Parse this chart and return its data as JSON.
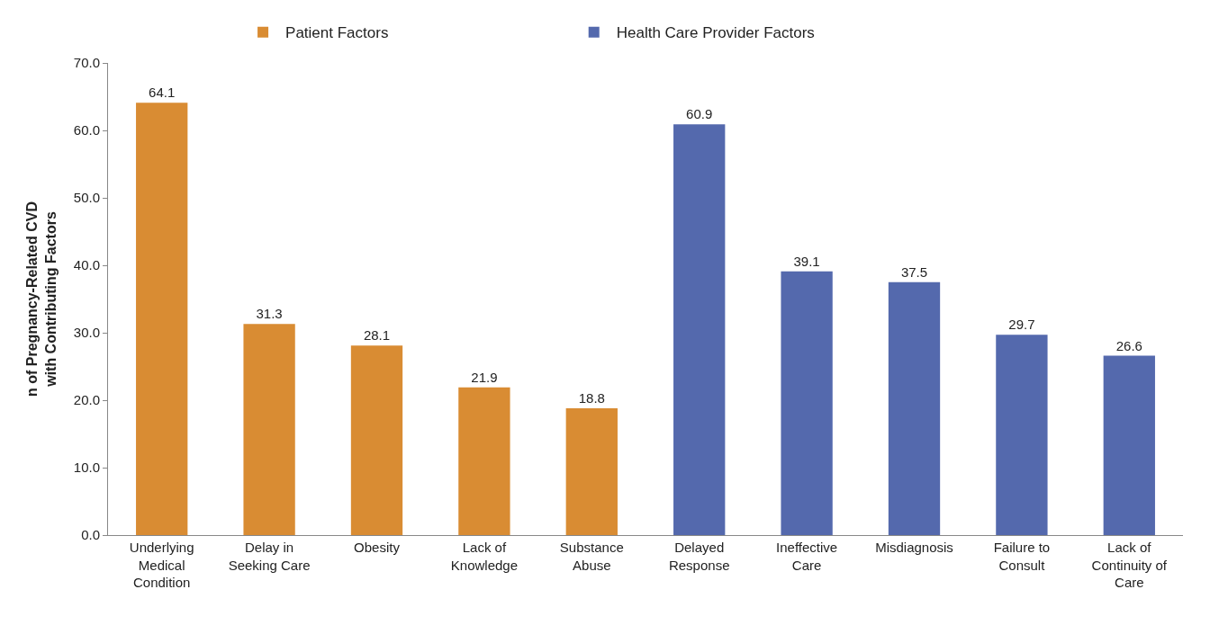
{
  "chart_data": {
    "type": "bar",
    "ylabel": "n of Pregnancy-Related CVD\nwith Contributing Factors",
    "categories": [
      "Underlying Medical Condition",
      "Delay in Seeking Care",
      "Obesity",
      "Lack of Knowledge",
      "Substance Abuse",
      "Delayed Response",
      "Ineffective Care",
      "Misdiagnosis",
      "Failure to Consult",
      "Lack of Continuity of Care"
    ],
    "series": [
      {
        "name": "Patient Factors",
        "color": "#d98c33",
        "values": [
          64.1,
          31.3,
          28.1,
          21.9,
          18.8,
          null,
          null,
          null,
          null,
          null
        ]
      },
      {
        "name": "Health Care Provider Factors",
        "color": "#5469ad",
        "values": [
          null,
          null,
          null,
          null,
          null,
          60.9,
          39.1,
          37.5,
          29.7,
          26.6
        ]
      }
    ],
    "ylim": [
      0,
      70
    ],
    "yticks": [
      {
        "value": 0,
        "label": "0.0"
      },
      {
        "value": 10,
        "label": "10.0"
      },
      {
        "value": 20,
        "label": "20.0"
      },
      {
        "value": 30,
        "label": "30.0"
      },
      {
        "value": 40,
        "label": "40.0"
      },
      {
        "value": 50,
        "label": "50.0"
      },
      {
        "value": 60,
        "label": "60.0"
      },
      {
        "value": 70,
        "label": "70.0"
      }
    ],
    "data_labels": true,
    "legend": "top"
  }
}
